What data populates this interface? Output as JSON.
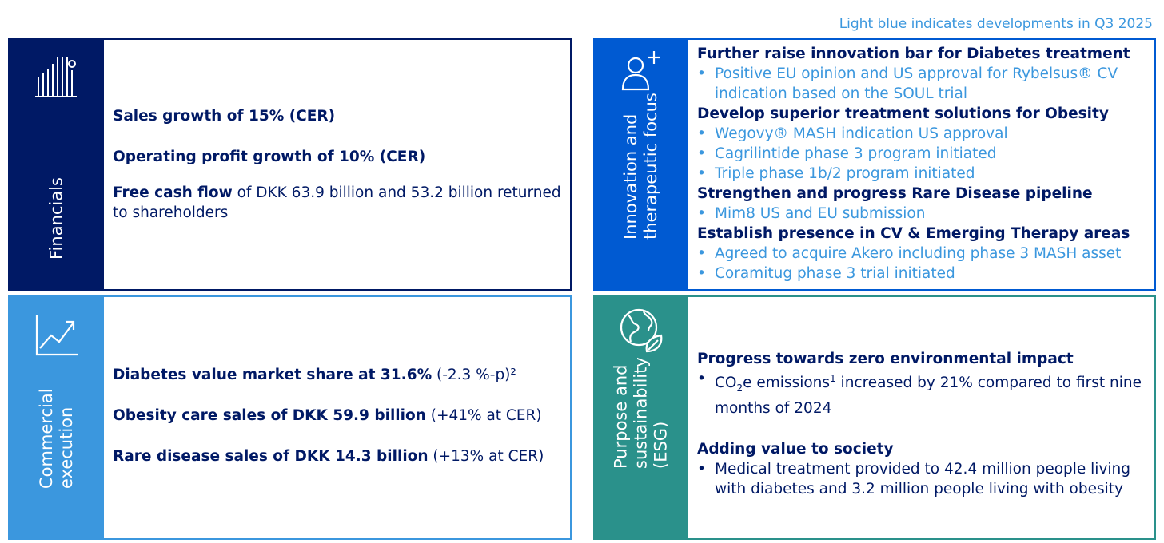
{
  "note": "Light blue indicates developments in Q3 2025",
  "colors": {
    "navy": "#001965",
    "blue": "#005AD2",
    "light_blue": "#3B97DE",
    "teal": "#2A918B"
  },
  "financials": {
    "label": "Financials",
    "icon": "bar-chart-icon",
    "lines": [
      {
        "bold": "Sales growth of 15% (CER)",
        "rest": ""
      },
      {
        "bold": "Operating profit growth of 10% (CER)",
        "rest": ""
      },
      {
        "bold": "Free cash flow",
        "rest": " of DKK 63.9 billion and 53.2 billion returned",
        "cont": "to shareholders"
      }
    ]
  },
  "innovation": {
    "label_line1": "Innovation and",
    "label_line2": "therapeutic focus",
    "icon": "person-add-icon",
    "groups": [
      {
        "heading": "Further raise innovation bar for Diabetes treatment",
        "items": [
          "Positive EU opinion and US approval for Rybelsus® CV indication based on the SOUL trial"
        ]
      },
      {
        "heading": "Develop superior treatment solutions for Obesity",
        "items": [
          "Wegovy® MASH indication US approval",
          "Cagrilintide phase 3 program initiated",
          "Triple phase 1b/2 program initiated"
        ]
      },
      {
        "heading": "Strengthen and progress Rare Disease pipeline",
        "items": [
          "Mim8 US and EU submission"
        ]
      },
      {
        "heading": "Establish presence in CV & Emerging Therapy areas",
        "items": [
          "Agreed to acquire Akero including phase 3 MASH asset",
          "Coramitug phase 3 trial initiated"
        ]
      }
    ]
  },
  "commercial": {
    "label_line1": "Commercial",
    "label_line2": "execution",
    "icon": "trend-up-icon",
    "lines": [
      {
        "bold": "Diabetes value market share at 31.6%",
        "rest": " (-2.3 %-p)²"
      },
      {
        "bold": "Obesity care sales of DKK 59.9 billion",
        "rest": " (+41% at CER)"
      },
      {
        "bold": "Rare disease sales of DKK 14.3 billion",
        "rest": " (+13% at CER)"
      }
    ]
  },
  "purpose": {
    "label_line1": "Purpose and",
    "label_line2": "sustainability",
    "label_line3": "(ESG)",
    "icon": "globe-leaf-icon",
    "groups": [
      {
        "heading": "Progress towards zero environmental impact",
        "item_pre": "CO",
        "item_sub": "2",
        "item_mid": "e emissions",
        "item_sup": "1",
        "item_post": " increased by 21% compared to first nine months of 2024"
      },
      {
        "heading": "Adding value to society",
        "item": "Medical treatment provided to 42.4 million people living with diabetes and 3.2 million people living with obesity"
      }
    ]
  }
}
